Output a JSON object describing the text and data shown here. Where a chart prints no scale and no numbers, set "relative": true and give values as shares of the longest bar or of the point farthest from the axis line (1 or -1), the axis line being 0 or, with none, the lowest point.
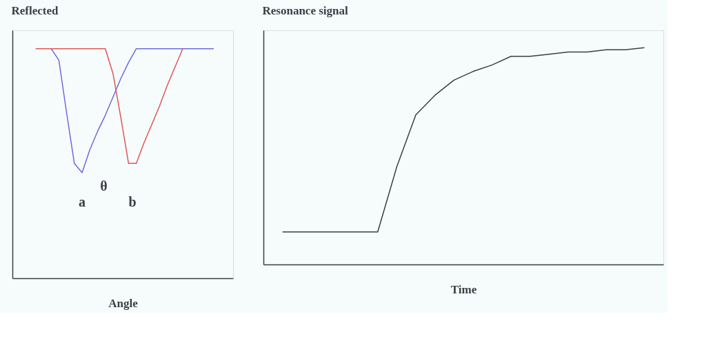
{
  "chart_data": [
    {
      "type": "line",
      "relative": true,
      "ylabel": "Reflected",
      "xlabel": "Angle",
      "categories": [
        null,
        null,
        null,
        null,
        null,
        null,
        null,
        null,
        null,
        null,
        null,
        null,
        null,
        null,
        null,
        null,
        null,
        null,
        null,
        null,
        null,
        null,
        null,
        null
      ],
      "series": [
        {
          "color": "#6a6ae0",
          "values": [
            null,
            null,
            1,
            0.95,
            0.72,
            0.5,
            0.46,
            0.56,
            0.64,
            0.71,
            0.79,
            0.87,
            0.94,
            1,
            1,
            1,
            1,
            1,
            1,
            1,
            1,
            1,
            1,
            1
          ]
        },
        {
          "color": "#e05555",
          "values": [
            1,
            1,
            1,
            1,
            1,
            1,
            1,
            1,
            1,
            1,
            0.89,
            0.7,
            0.5,
            0.5,
            0.59,
            0.67,
            0.75,
            0.84,
            0.92,
            1,
            null,
            null,
            null,
            null
          ]
        }
      ],
      "annotations": [
        "a",
        "θ",
        "b"
      ]
    },
    {
      "type": "line",
      "relative": true,
      "ylabel": "Resonance signal",
      "xlabel": "Time",
      "categories": [
        null,
        null,
        null,
        null,
        null,
        null,
        null,
        null,
        null,
        null,
        null,
        null,
        null,
        null,
        null,
        null,
        null,
        null,
        null,
        null
      ],
      "series": [
        {
          "color": "#3a3f44",
          "values": [
            0.15,
            0.15,
            0.15,
            0.15,
            0.15,
            0.15,
            0.45,
            0.69,
            0.78,
            0.85,
            0.89,
            0.92,
            0.96,
            0.96,
            0.97,
            0.98,
            0.98,
            0.99,
            0.99,
            1.0
          ]
        }
      ]
    }
  ]
}
